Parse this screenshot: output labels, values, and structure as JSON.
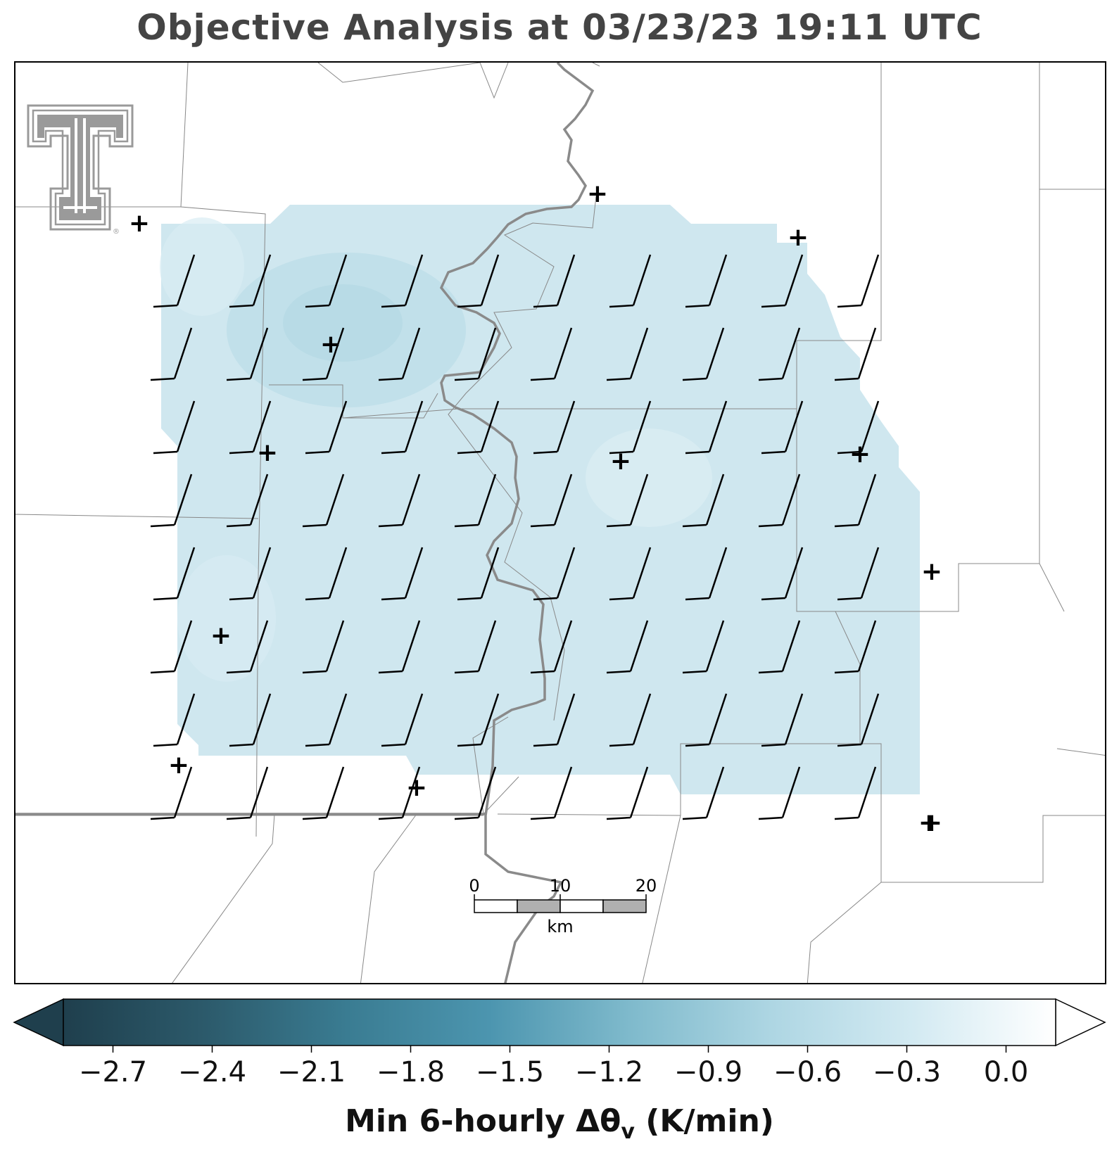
{
  "title": "Objective Analysis at 03/23/23 19:11 UTC",
  "colors": {
    "field": "#c9e4ec",
    "field_dark": "#b9dce7",
    "field_light": "#daedf3",
    "county": "#888888",
    "state": "#8a8a8a",
    "barb": "#000000",
    "logo": "#9a9a9a"
  },
  "logo": {
    "icon": "texas-tech-double-t-logo",
    "registered_mark": "®"
  },
  "wind_grid": {
    "rows": 8,
    "cols": 10,
    "barb_style": "half-barb, southwest winds"
  },
  "stations": {
    "marker": "+",
    "count": 13
  },
  "scale_bar": {
    "unit": "km",
    "labels": [
      "0",
      "10",
      "20"
    ]
  },
  "colorbar": {
    "label": "Min 6-hourly Δθ",
    "label_subscript": "v",
    "label_units": " (K/min)",
    "vmin": -2.85,
    "vmax": 0.15,
    "ticks": [
      "−2.7",
      "−2.4",
      "−2.1",
      "−1.8",
      "−1.5",
      "−1.2",
      "−0.9",
      "−0.6",
      "−0.3",
      "0.0"
    ],
    "tick_values": [
      -2.7,
      -2.4,
      -2.1,
      -1.8,
      -1.5,
      -1.2,
      -0.9,
      -0.6,
      -0.3,
      0.0
    ],
    "stops": [
      "#1f3f4d",
      "#2c5a6b",
      "#3a7c92",
      "#4c95af",
      "#7fbacc",
      "#aed6e3",
      "#d3eaf2",
      "#ffffff"
    ],
    "extend": "both"
  }
}
